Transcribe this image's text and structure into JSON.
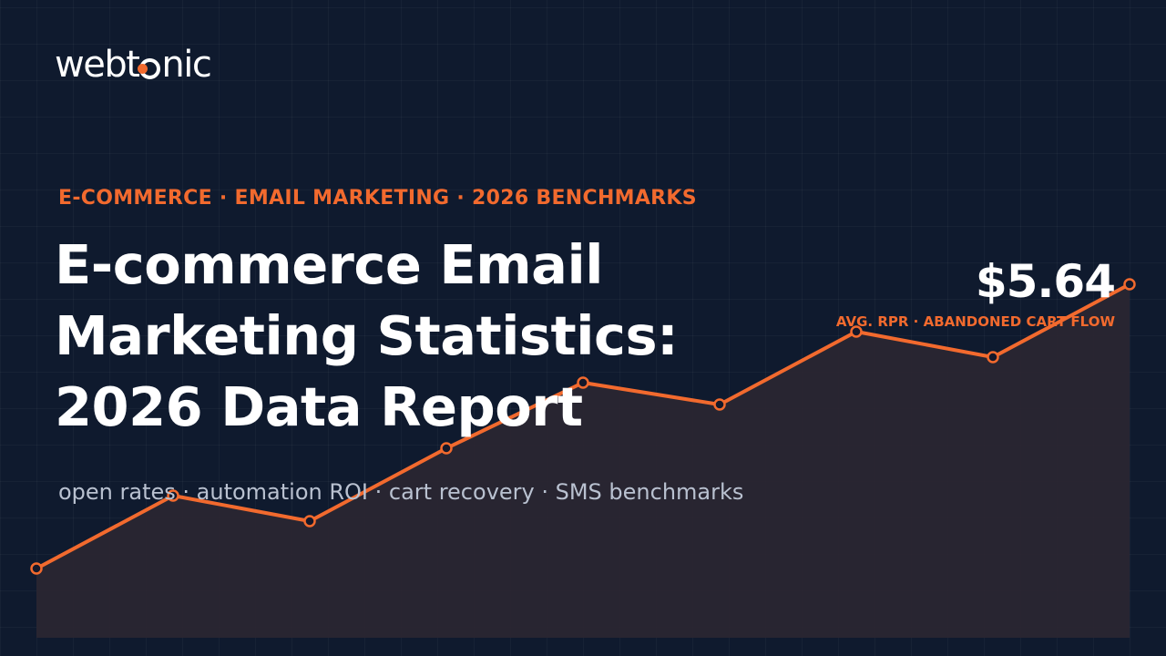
{
  "brand": {
    "logo_text_before": "webt",
    "logo_text_after": "nic",
    "accent_color": "#f26a2e",
    "background_color": "#0f1a2e"
  },
  "hero": {
    "eyebrow": "E-COMMERCE · EMAIL MARKETING · 2026 BENCHMARKS",
    "title_lines": [
      "E-commerce Email",
      "Marketing Statistics:",
      "2026 Data Report"
    ],
    "subtitle": "open rates · automation ROI · cart recovery · SMS benchmarks"
  },
  "stat": {
    "value": "$5.64",
    "label": "AVG. RPR · ABANDONED CART FLOW"
  },
  "chart_data": {
    "type": "area",
    "x": [
      0,
      1,
      2,
      3,
      4,
      5,
      6,
      7,
      8
    ],
    "values": [
      0.19,
      0.39,
      0.32,
      0.52,
      0.7,
      0.64,
      0.84,
      0.77,
      0.97
    ],
    "ylim": [
      0,
      1
    ],
    "title": "",
    "xlabel": "",
    "ylabel": "",
    "line_color": "#f26a2e",
    "marker": "hollow-circle",
    "grid": false,
    "axes_visible": false
  }
}
